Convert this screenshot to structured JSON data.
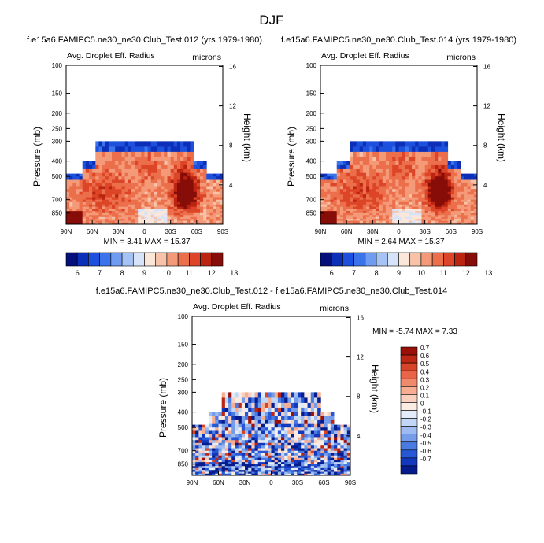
{
  "figure": {
    "title": "DJF"
  },
  "chart_data": [
    {
      "type": "heatmap",
      "title": "f.e15a6.FAMIPC5.ne30_ne30.Club_Test.012 (yrs 1979-1980)",
      "left_label": "Avg. Droplet Eff. Radius",
      "right_label": "microns",
      "ylabel": "Pressure (mb)",
      "y2label": "Height (km)",
      "xlabel": "",
      "x_ticks": [
        "90N",
        "60N",
        "30N",
        "0",
        "30S",
        "60S",
        "90S"
      ],
      "y_ticks": [
        "100",
        "150",
        "200",
        "250",
        "300",
        "400",
        "500",
        "700",
        "850"
      ],
      "y2_ticks": [
        "16",
        "12",
        "8",
        "4"
      ],
      "xlim": [
        90,
        -90
      ],
      "ylim": [
        1000,
        100
      ],
      "stats": "MIN =   3.41  MAX =  15.37",
      "colorbar": {
        "orientation": "horizontal",
        "labels": [
          "6",
          "7",
          "8",
          "9",
          "10",
          "11",
          "12",
          "13"
        ],
        "colors": [
          "#05107a",
          "#0c2fb8",
          "#1d50dc",
          "#3b74ea",
          "#6f9bf0",
          "#a6c3f5",
          "#d6e3f8",
          "#fbe6da",
          "#f7c2a7",
          "#f49a78",
          "#ec6f4c",
          "#dc4527",
          "#bb2411",
          "#870d08"
        ]
      }
    },
    {
      "type": "heatmap",
      "title": "f.e15a6.FAMIPC5.ne30_ne30.Club_Test.014 (yrs 1979-1980)",
      "left_label": "Avg. Droplet Eff. Radius",
      "right_label": "microns",
      "ylabel": "Pressure (mb)",
      "y2label": "Height (km)",
      "xlabel": "",
      "x_ticks": [
        "90N",
        "60N",
        "30N",
        "0",
        "30S",
        "60S",
        "90S"
      ],
      "y_ticks": [
        "100",
        "150",
        "200",
        "250",
        "300",
        "400",
        "500",
        "700",
        "850"
      ],
      "y2_ticks": [
        "16",
        "12",
        "8",
        "4"
      ],
      "xlim": [
        90,
        -90
      ],
      "ylim": [
        1000,
        100
      ],
      "stats": "MIN =   2.64  MAX =  15.37",
      "colorbar": {
        "orientation": "horizontal",
        "labels": [
          "6",
          "7",
          "8",
          "9",
          "10",
          "11",
          "12",
          "13"
        ],
        "colors": [
          "#05107a",
          "#0c2fb8",
          "#1d50dc",
          "#3b74ea",
          "#6f9bf0",
          "#a6c3f5",
          "#d6e3f8",
          "#fbe6da",
          "#f7c2a7",
          "#f49a78",
          "#ec6f4c",
          "#dc4527",
          "#bb2411",
          "#870d08"
        ]
      }
    },
    {
      "type": "heatmap",
      "title": "f.e15a6.FAMIPC5.ne30_ne30.Club_Test.012 - f.e15a6.FAMIPC5.ne30_ne30.Club_Test.014",
      "left_label": "Avg. Droplet Eff. Radius",
      "right_label": "microns",
      "ylabel": "Pressure (mb)",
      "y2label": "Height (km)",
      "xlabel": "",
      "x_ticks": [
        "90N",
        "60N",
        "30N",
        "0",
        "30S",
        "60S",
        "90S"
      ],
      "y_ticks": [
        "100",
        "150",
        "200",
        "250",
        "300",
        "400",
        "500",
        "700",
        "850"
      ],
      "y2_ticks": [
        "16",
        "12",
        "8",
        "4"
      ],
      "xlim": [
        90,
        -90
      ],
      "ylim": [
        1000,
        100
      ],
      "stats": "MIN =  -5.74  MAX =   7.33",
      "colorbar": {
        "orientation": "vertical",
        "labels": [
          "0.7",
          "0.6",
          "0.5",
          "0.4",
          "0.3",
          "0.2",
          "0.1",
          "0",
          "-0.1",
          "-0.2",
          "-0.3",
          "-0.4",
          "-0.5",
          "-0.6",
          "-0.7"
        ],
        "colors": [
          "#9a1006",
          "#bd2613",
          "#d84428",
          "#e8654a",
          "#f08a6d",
          "#f6ad92",
          "#f9d0bd",
          "#fbece3",
          "#e3edfa",
          "#c2d6f5",
          "#9dbbf0",
          "#749ce9",
          "#4a7be2",
          "#2658d5",
          "#1138bd",
          "#061c8c"
        ]
      }
    }
  ]
}
